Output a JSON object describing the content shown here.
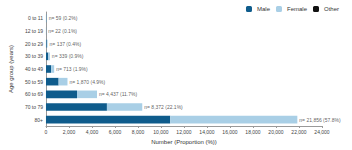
{
  "chart_data": {
    "type": "bar",
    "orientation": "horizontal",
    "stacked": true,
    "x_label": "Number (Proportion (%))",
    "y_label": "Age group (years)",
    "categories": [
      "0 to 11",
      "12 to 19",
      "20 to 29",
      "30 to 39",
      "40 to 49",
      "50 to 59",
      "60 to 69",
      "70 to 79",
      "80+"
    ],
    "series": [
      {
        "name": "Male",
        "color": "#0f5c8c",
        "values": [
          30,
          10,
          70,
          200,
          450,
          1100,
          2700,
          5300,
          10800
        ]
      },
      {
        "name": "Female",
        "color": "#a9cfe6",
        "values": [
          29,
          12,
          67,
          139,
          263,
          770,
          1737,
          3072,
          11056
        ]
      },
      {
        "name": "Other",
        "color": "#111111",
        "values": [
          0,
          0,
          0,
          0,
          0,
          0,
          0,
          0,
          0
        ]
      }
    ],
    "totals": [
      59,
      22,
      137,
      339,
      713,
      1870,
      4437,
      8372,
      21856
    ],
    "total_labels": [
      "n= 59 (0.2%)",
      "n= 22 (0.1%)",
      "n= 137 (0.4%)",
      "n= 339 (0.9%)",
      "n= 713 (1.9%)",
      "n= 1,870 (4.9%)",
      "n= 4,437 (11.7%)",
      "n= 8,372 (22.1%)",
      "n= 21,856 (57.8%)"
    ],
    "xlim": [
      0,
      24000
    ],
    "xticks": [
      0,
      {
        "value": 2000,
        "label": "2,000"
      },
      {
        "value": 4000,
        "label": "4,000"
      },
      {
        "value": 6000,
        "label": "6,000"
      },
      {
        "value": 8000,
        "label": "8,000"
      },
      {
        "value": 10000,
        "label": "10,000"
      },
      {
        "value": 12000,
        "label": "12,000"
      },
      {
        "value": 14000,
        "label": "14,000"
      },
      {
        "value": 16000,
        "label": "16,000"
      },
      {
        "value": 18000,
        "label": "18,000"
      },
      {
        "value": 20000,
        "label": "20,000"
      },
      {
        "value": 22000,
        "label": "22,000"
      },
      {
        "value": 24000,
        "label": "24,000"
      }
    ],
    "legend": "top-right",
    "data_labels": true,
    "grid": false
  }
}
